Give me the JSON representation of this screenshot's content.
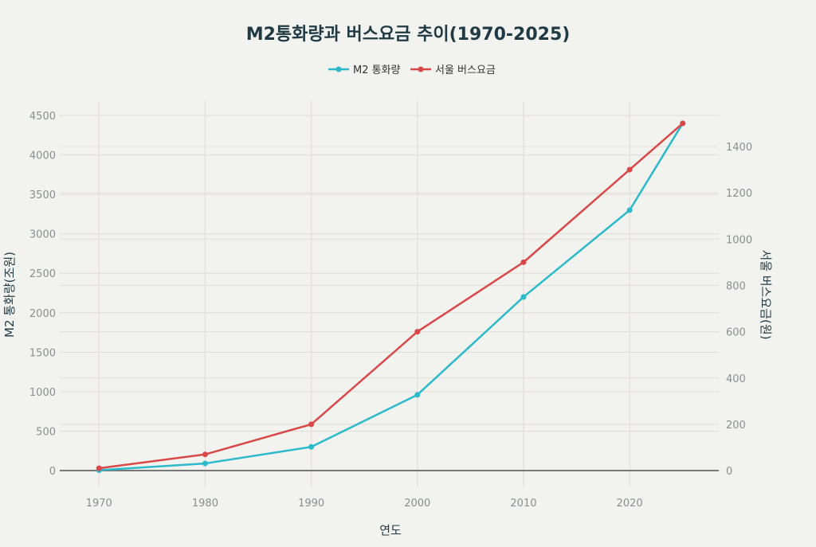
{
  "chart_data": {
    "type": "line",
    "title": "M2통화량과 버스요금 추이(1970-2025)",
    "xlabel": "연도",
    "ylabel_left": "M2 통화량(조원)",
    "ylabel_right": "서울 버스요금(원)",
    "x": [
      1970,
      1980,
      1990,
      2000,
      2010,
      2020,
      2025
    ],
    "x_ticks": [
      1970,
      1980,
      1990,
      2000,
      2010,
      2020
    ],
    "y_left_ticks": [
      0,
      500,
      1000,
      1500,
      2000,
      2500,
      3000,
      3500,
      4000,
      4500
    ],
    "y_right_ticks": [
      0,
      200,
      400,
      600,
      800,
      1000,
      1200,
      1400
    ],
    "xlim": [
      1966.3,
      2028.4
    ],
    "ylim_left": [
      -212,
      4682
    ],
    "ylim_right": [
      -72,
      1596
    ],
    "grid": true,
    "legend_position": "top-center",
    "series": [
      {
        "name": "M2 통화량",
        "axis": "left",
        "color": "#2bbacc",
        "values": [
          5,
          90,
          300,
          960,
          2200,
          3300,
          4400
        ]
      },
      {
        "name": "서울 버스요금",
        "axis": "right",
        "color": "#d94848",
        "values": [
          10,
          70,
          200,
          600,
          900,
          1300,
          1500
        ]
      }
    ]
  }
}
